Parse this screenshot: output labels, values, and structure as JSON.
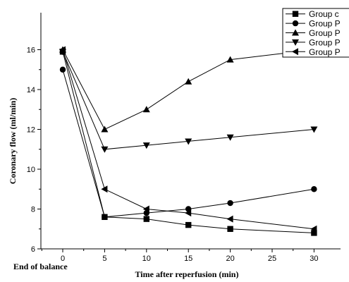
{
  "chart_data": {
    "type": "line",
    "xlabel": "Time after reperfusion (min)",
    "ylabel": "Coronary flow (ml/min)",
    "x_origin_label": "End of balance",
    "xlim": [
      -5,
      30
    ],
    "ylim": [
      6,
      17
    ],
    "xticks": [
      0,
      5,
      10,
      15,
      20,
      25,
      30
    ],
    "yticks": [
      6,
      8,
      10,
      12,
      14,
      16
    ],
    "x": [
      0,
      5,
      10,
      15,
      20,
      30
    ],
    "legend_position": "top-right",
    "series": [
      {
        "name": "Group c",
        "marker": "square",
        "values": [
          15.9,
          7.6,
          7.5,
          7.2,
          7.0,
          6.8
        ]
      },
      {
        "name": "Group P",
        "marker": "circle",
        "values": [
          15.0,
          7.6,
          7.8,
          8.0,
          8.3,
          9.0
        ]
      },
      {
        "name": "Group P",
        "marker": "triangle-up",
        "values": [
          16.0,
          12.0,
          13.0,
          14.4,
          15.5,
          16.0
        ]
      },
      {
        "name": "Group P",
        "marker": "triangle-down",
        "values": [
          15.9,
          11.0,
          11.2,
          11.4,
          11.6,
          12.0
        ]
      },
      {
        "name": "Group P",
        "marker": "triangle-left",
        "values": [
          16.0,
          9.0,
          8.0,
          7.8,
          7.5,
          7.0
        ]
      }
    ],
    "grid": false
  }
}
